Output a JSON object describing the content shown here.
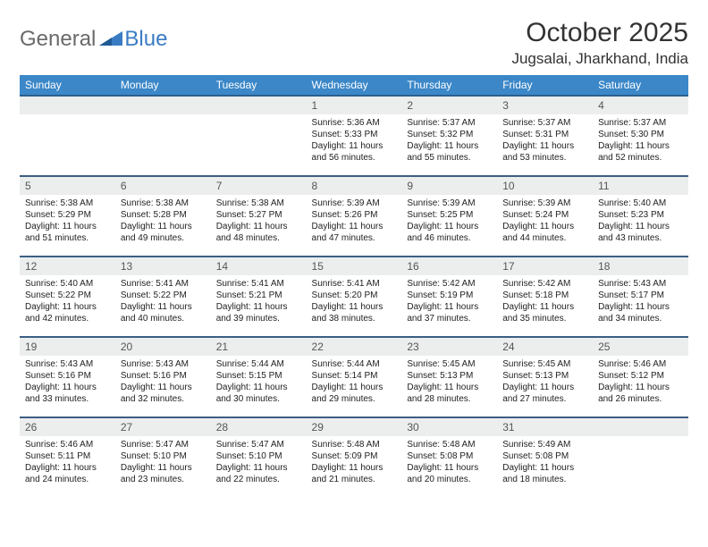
{
  "brand": {
    "part1": "General",
    "part2": "Blue"
  },
  "title": "October 2025",
  "location": "Jugsalai, Jharkhand, India",
  "colors": {
    "header_bg": "#3b87c8",
    "header_border": "#3b5f85",
    "daynum_bg": "#eceeee",
    "brand_gray": "#6a6a6a",
    "brand_blue": "#3a7cc4"
  },
  "day_headers": [
    "Sunday",
    "Monday",
    "Tuesday",
    "Wednesday",
    "Thursday",
    "Friday",
    "Saturday"
  ],
  "weeks": [
    [
      null,
      null,
      null,
      {
        "n": "1",
        "sr": "5:36 AM",
        "ss": "5:33 PM",
        "dl": "11 hours and 56 minutes."
      },
      {
        "n": "2",
        "sr": "5:37 AM",
        "ss": "5:32 PM",
        "dl": "11 hours and 55 minutes."
      },
      {
        "n": "3",
        "sr": "5:37 AM",
        "ss": "5:31 PM",
        "dl": "11 hours and 53 minutes."
      },
      {
        "n": "4",
        "sr": "5:37 AM",
        "ss": "5:30 PM",
        "dl": "11 hours and 52 minutes."
      }
    ],
    [
      {
        "n": "5",
        "sr": "5:38 AM",
        "ss": "5:29 PM",
        "dl": "11 hours and 51 minutes."
      },
      {
        "n": "6",
        "sr": "5:38 AM",
        "ss": "5:28 PM",
        "dl": "11 hours and 49 minutes."
      },
      {
        "n": "7",
        "sr": "5:38 AM",
        "ss": "5:27 PM",
        "dl": "11 hours and 48 minutes."
      },
      {
        "n": "8",
        "sr": "5:39 AM",
        "ss": "5:26 PM",
        "dl": "11 hours and 47 minutes."
      },
      {
        "n": "9",
        "sr": "5:39 AM",
        "ss": "5:25 PM",
        "dl": "11 hours and 46 minutes."
      },
      {
        "n": "10",
        "sr": "5:39 AM",
        "ss": "5:24 PM",
        "dl": "11 hours and 44 minutes."
      },
      {
        "n": "11",
        "sr": "5:40 AM",
        "ss": "5:23 PM",
        "dl": "11 hours and 43 minutes."
      }
    ],
    [
      {
        "n": "12",
        "sr": "5:40 AM",
        "ss": "5:22 PM",
        "dl": "11 hours and 42 minutes."
      },
      {
        "n": "13",
        "sr": "5:41 AM",
        "ss": "5:22 PM",
        "dl": "11 hours and 40 minutes."
      },
      {
        "n": "14",
        "sr": "5:41 AM",
        "ss": "5:21 PM",
        "dl": "11 hours and 39 minutes."
      },
      {
        "n": "15",
        "sr": "5:41 AM",
        "ss": "5:20 PM",
        "dl": "11 hours and 38 minutes."
      },
      {
        "n": "16",
        "sr": "5:42 AM",
        "ss": "5:19 PM",
        "dl": "11 hours and 37 minutes."
      },
      {
        "n": "17",
        "sr": "5:42 AM",
        "ss": "5:18 PM",
        "dl": "11 hours and 35 minutes."
      },
      {
        "n": "18",
        "sr": "5:43 AM",
        "ss": "5:17 PM",
        "dl": "11 hours and 34 minutes."
      }
    ],
    [
      {
        "n": "19",
        "sr": "5:43 AM",
        "ss": "5:16 PM",
        "dl": "11 hours and 33 minutes."
      },
      {
        "n": "20",
        "sr": "5:43 AM",
        "ss": "5:16 PM",
        "dl": "11 hours and 32 minutes."
      },
      {
        "n": "21",
        "sr": "5:44 AM",
        "ss": "5:15 PM",
        "dl": "11 hours and 30 minutes."
      },
      {
        "n": "22",
        "sr": "5:44 AM",
        "ss": "5:14 PM",
        "dl": "11 hours and 29 minutes."
      },
      {
        "n": "23",
        "sr": "5:45 AM",
        "ss": "5:13 PM",
        "dl": "11 hours and 28 minutes."
      },
      {
        "n": "24",
        "sr": "5:45 AM",
        "ss": "5:13 PM",
        "dl": "11 hours and 27 minutes."
      },
      {
        "n": "25",
        "sr": "5:46 AM",
        "ss": "5:12 PM",
        "dl": "11 hours and 26 minutes."
      }
    ],
    [
      {
        "n": "26",
        "sr": "5:46 AM",
        "ss": "5:11 PM",
        "dl": "11 hours and 24 minutes."
      },
      {
        "n": "27",
        "sr": "5:47 AM",
        "ss": "5:10 PM",
        "dl": "11 hours and 23 minutes."
      },
      {
        "n": "28",
        "sr": "5:47 AM",
        "ss": "5:10 PM",
        "dl": "11 hours and 22 minutes."
      },
      {
        "n": "29",
        "sr": "5:48 AM",
        "ss": "5:09 PM",
        "dl": "11 hours and 21 minutes."
      },
      {
        "n": "30",
        "sr": "5:48 AM",
        "ss": "5:08 PM",
        "dl": "11 hours and 20 minutes."
      },
      {
        "n": "31",
        "sr": "5:49 AM",
        "ss": "5:08 PM",
        "dl": "11 hours and 18 minutes."
      },
      null
    ]
  ],
  "labels": {
    "sunrise": "Sunrise:",
    "sunset": "Sunset:",
    "daylight": "Daylight:"
  }
}
